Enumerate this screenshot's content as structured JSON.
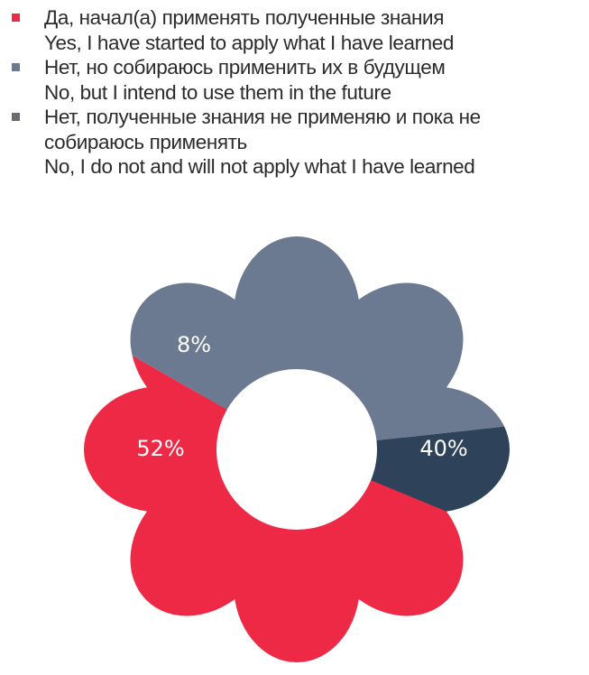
{
  "chart_data": {
    "type": "pie",
    "style": "flower-donut",
    "legend_position": "top-left",
    "series": [
      {
        "name": "Да, начал(а) применять полученные знания",
        "name_en": "Yes, I have started to apply what I have learned",
        "value": 52,
        "label": "52%",
        "color": "#EE2946",
        "legend_color": "#EE2946"
      },
      {
        "name": "Нет, но собираюсь применить их в будущем",
        "name_en": "No, but I intend to use them in the future",
        "value": 40,
        "label": "40%",
        "color": "#6B7A90",
        "legend_color": "#6B7A90"
      },
      {
        "name": "Нет, полученные знания не применяю и пока не собираюсь применять",
        "name_en": "No, I do not and will not apply what I have learned",
        "value": 8,
        "label": "8%",
        "color": "#2E4259",
        "legend_color": "#6A6A70"
      }
    ]
  }
}
